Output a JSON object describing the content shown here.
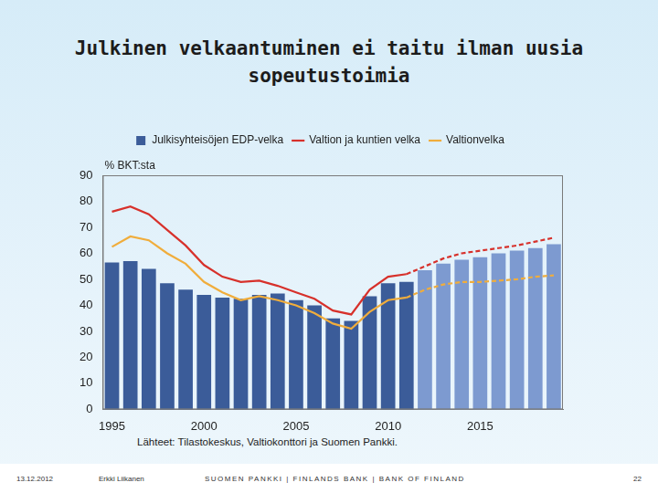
{
  "chart_data": {
    "type": "bar",
    "title": "Julkinen velkaantuminen ei taitu ilman uusia sopeutustoimia",
    "y_label": "% BKT:sta",
    "source": "Lähteet: Tilastokeskus, Valtiokonttori ja Suomen Pankki.",
    "categories": [
      "1995",
      null,
      null,
      null,
      null,
      "2000",
      null,
      null,
      null,
      null,
      "2005",
      null,
      null,
      null,
      null,
      "2010",
      null,
      null,
      null,
      null,
      "2015",
      null,
      null,
      null,
      null
    ],
    "series": [
      {
        "name": "Julkisyhteisöjen EDP-velka",
        "type": "bar",
        "colors": [
          "#3b5c99",
          "#3b5c99",
          "#3b5c99",
          "#3b5c99",
          "#3b5c99",
          "#3b5c99",
          "#3b5c99",
          "#3b5c99",
          "#3b5c99",
          "#3b5c99",
          "#3b5c99",
          "#3b5c99",
          "#3b5c99",
          "#3b5c99",
          "#3b5c99",
          "#3b5c99",
          "#3b5c99",
          "#7d9ad0",
          "#7d9ad0",
          "#7d9ad0",
          "#7d9ad0",
          "#7d9ad0",
          "#7d9ad0",
          "#7d9ad0",
          "#7d9ad0"
        ],
        "values": [
          56.5,
          57,
          54,
          48.5,
          46,
          44,
          43,
          42.5,
          44,
          44.5,
          42,
          40,
          35,
          34,
          43.5,
          48.5,
          49,
          53.5,
          56,
          57.5,
          58.5,
          60,
          61,
          62,
          63.5
        ]
      },
      {
        "name": "Valtion ja kuntien velka",
        "type": "line",
        "color": "#d7312b",
        "line_style": "solid",
        "values": [
          76,
          78,
          75,
          69,
          63,
          55.5,
          51,
          49,
          49.5,
          47.5,
          45,
          42.5,
          38,
          36.5,
          46,
          51,
          52,
          null,
          null,
          null,
          null,
          null,
          null,
          null,
          null
        ]
      },
      {
        "name": "Valtion ja kuntien velka",
        "type": "line",
        "color": "#d7312b",
        "line_style": "dashed",
        "values": [
          null,
          null,
          null,
          null,
          null,
          null,
          null,
          null,
          null,
          null,
          null,
          null,
          null,
          null,
          null,
          null,
          52,
          55,
          58,
          60,
          61,
          62,
          63,
          64.5,
          66
        ]
      },
      {
        "name": "Valtionvelka",
        "type": "line",
        "color": "#f0ad3c",
        "line_style": "solid",
        "values": [
          62.5,
          66.5,
          65,
          60,
          56,
          49,
          45,
          42,
          43.5,
          42,
          40,
          37,
          33,
          31,
          37.5,
          42,
          43,
          null,
          null,
          null,
          null,
          null,
          null,
          null,
          null
        ]
      },
      {
        "name": "Valtionvelka",
        "type": "line",
        "color": "#f0ad3c",
        "line_style": "dashed",
        "values": [
          null,
          null,
          null,
          null,
          null,
          null,
          null,
          null,
          null,
          null,
          null,
          null,
          null,
          null,
          null,
          null,
          43,
          46,
          48,
          49,
          49,
          49.5,
          50,
          51,
          51.5
        ]
      }
    ],
    "ylim": [
      0,
      90
    ],
    "yticks": [
      0,
      10,
      20,
      30,
      40,
      50,
      60,
      70,
      80,
      90
    ],
    "grid": false,
    "legend": "top"
  },
  "footer": {
    "date": "13.12.2012",
    "author": "Erkki Liikanen",
    "organization": "SUOMEN PANKKI | FINLANDS BANK | BANK OF FINLAND",
    "page": "22"
  }
}
